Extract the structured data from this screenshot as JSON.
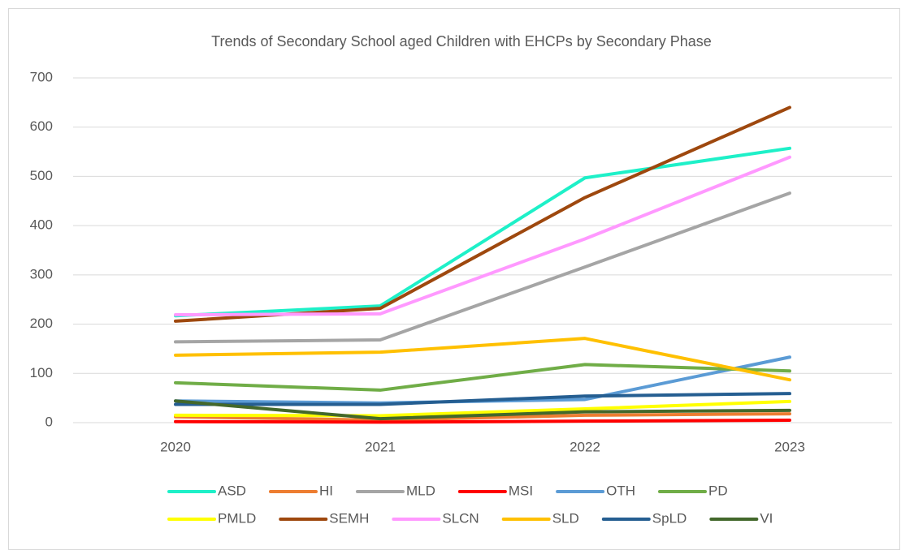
{
  "chart_data": {
    "type": "line",
    "title": "Trends of Secondary School aged Children with EHCPs by Secondary Phase",
    "categories": [
      "2020",
      "2021",
      "2022",
      "2023"
    ],
    "series": [
      {
        "name": "ASD",
        "color": "#1ef0c8",
        "values": [
          217,
          237,
          497,
          557
        ]
      },
      {
        "name": "HI",
        "color": "#ed7d31",
        "values": [
          12,
          5,
          15,
          18
        ]
      },
      {
        "name": "MLD",
        "color": "#a5a5a5",
        "values": [
          164,
          168,
          316,
          466
        ]
      },
      {
        "name": "MSI",
        "color": "#ff0000",
        "values": [
          2,
          1,
          3,
          5
        ]
      },
      {
        "name": "OTH",
        "color": "#5b9bd5",
        "values": [
          44,
          40,
          47,
          133
        ]
      },
      {
        "name": "PD",
        "color": "#70ad47",
        "values": [
          81,
          66,
          118,
          105
        ]
      },
      {
        "name": "PMLD",
        "color": "#ffff00",
        "values": [
          15,
          14,
          28,
          43
        ]
      },
      {
        "name": "SEMH",
        "color": "#9e480e",
        "values": [
          206,
          232,
          457,
          640
        ]
      },
      {
        "name": "SLCN",
        "color": "#ff99ff",
        "values": [
          219,
          221,
          373,
          539
        ]
      },
      {
        "name": "SLD",
        "color": "#ffc000",
        "values": [
          137,
          143,
          171,
          87
        ]
      },
      {
        "name": "SpLD",
        "color": "#255e91",
        "values": [
          37,
          37,
          54,
          59
        ]
      },
      {
        "name": "VI",
        "color": "#43682b",
        "values": [
          44,
          8,
          22,
          25
        ]
      }
    ],
    "ylim": [
      0,
      700
    ],
    "yticks": [
      0,
      100,
      200,
      300,
      400,
      500,
      600,
      700
    ],
    "grid": true,
    "legend": "bottom"
  }
}
